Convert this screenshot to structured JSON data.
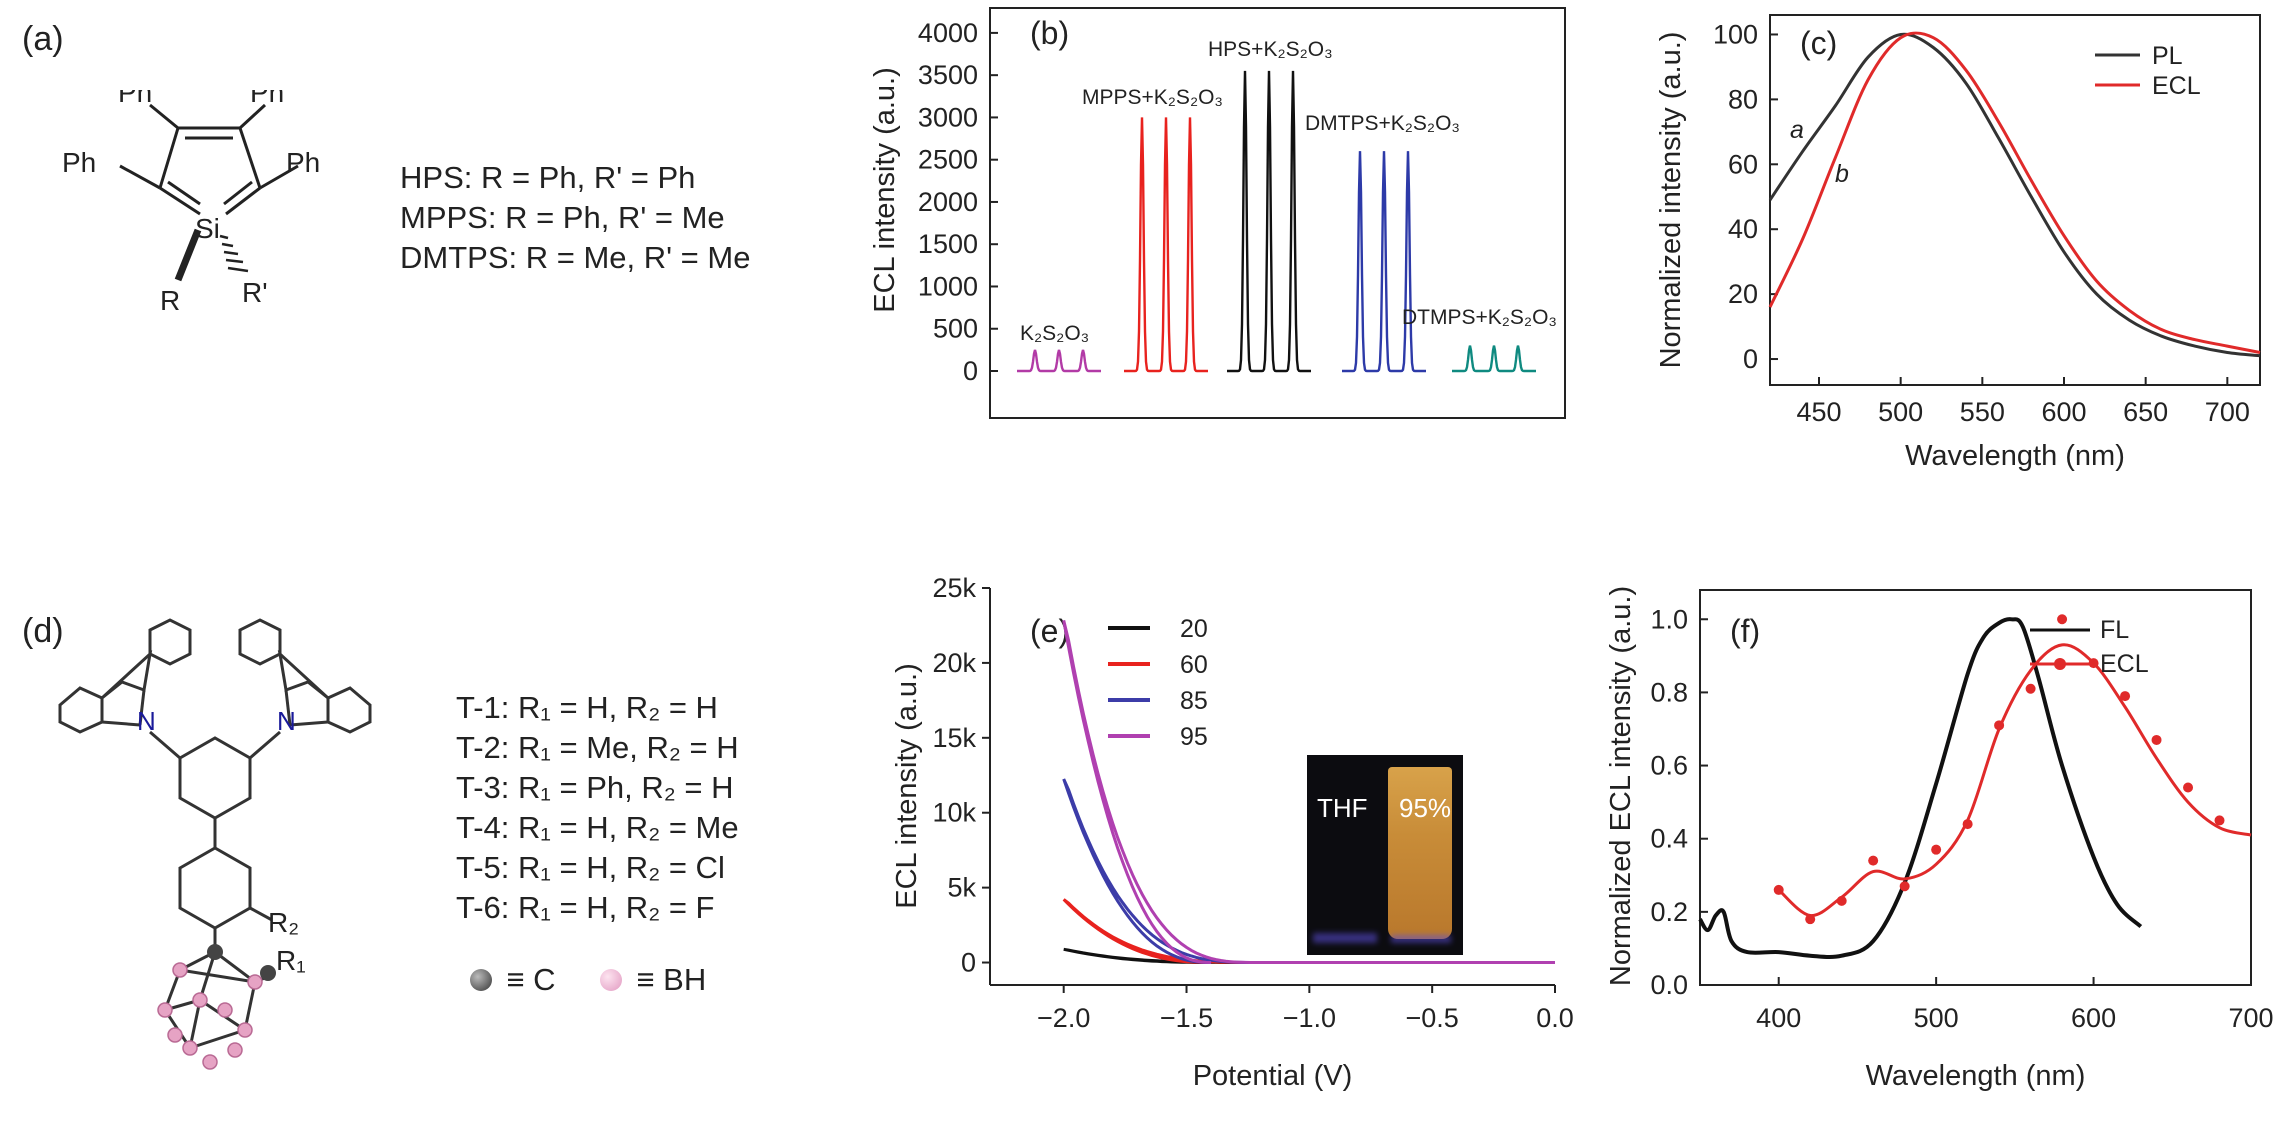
{
  "panels": {
    "a": {
      "label": "(a)",
      "legend": [
        "HPS: R = Ph, R' = Ph",
        "MPPS: R = Ph, R' = Me",
        "DMTPS: R = Me, R' = Me"
      ],
      "structure": {
        "ph": "Ph",
        "si": "Si",
        "r": "R",
        "rp": "R'"
      }
    },
    "d": {
      "label": "(d)",
      "legend": [
        "T-1: R₁ = H, R₂ = H",
        "T-2: R₁ = Me, R₂ = H",
        "T-3: R₁ = Ph, R₂ = H",
        "T-4: R₁ = H, R₂ = Me",
        "T-5: R₁ = H, R₂ = Cl",
        "T-6: R₁ = H, R₂ = F"
      ],
      "key_c": "≡ C",
      "key_bh": "≡ BH",
      "structure": {
        "n": "N",
        "r1": "R₁",
        "r2": "R₂"
      }
    }
  },
  "chart_data": [
    {
      "panel": "(b)",
      "type": "line",
      "ylabel": "ECL intensity (a.u.)",
      "xlabel": "",
      "ylim": [
        0,
        4000
      ],
      "yticks": [
        "0",
        "500",
        "1000",
        "1500",
        "2000",
        "2500",
        "3000",
        "3500",
        "4000"
      ],
      "series": [
        {
          "name": "K₂S₂O₃",
          "peak": 250,
          "peaks": 3,
          "color": "#b23aa6"
        },
        {
          "name": "MPPS+K₂S₂O₃",
          "peak": 3000,
          "peaks": 3,
          "color": "#e8221e"
        },
        {
          "name": "HPS+K₂S₂O₃",
          "peak": 3550,
          "peaks": 3,
          "color": "#111111"
        },
        {
          "name": "DMTPS+K₂S₂O₃",
          "peak": 2600,
          "peaks": 3,
          "color": "#2d3aa8"
        },
        {
          "name": "DTMPS+K₂S₂O₃",
          "peak": 300,
          "peaks": 3,
          "color": "#0f8a80"
        }
      ]
    },
    {
      "panel": "(c)",
      "type": "line",
      "xlabel": "Wavelength (nm)",
      "ylabel": "Normalized intensity (a.u.)",
      "xlim": [
        420,
        720
      ],
      "ylim": [
        -8,
        106
      ],
      "xticks": [
        450,
        500,
        550,
        600,
        650,
        700
      ],
      "yticks": [
        0,
        20,
        40,
        60,
        80,
        100
      ],
      "legend_position": "top-right",
      "annotations": [
        "a",
        "b"
      ],
      "series": [
        {
          "name": "PL",
          "color": "#333333",
          "x": [
            420,
            440,
            460,
            480,
            500,
            520,
            540,
            560,
            580,
            600,
            620,
            640,
            660,
            680,
            700,
            720
          ],
          "y": [
            49,
            64,
            78,
            93,
            100,
            96,
            85,
            68,
            50,
            33,
            20,
            12,
            7,
            4,
            2,
            1
          ]
        },
        {
          "name": "ECL",
          "color": "#e02a2a",
          "x": [
            420,
            440,
            460,
            480,
            500,
            520,
            540,
            560,
            580,
            600,
            620,
            640,
            660,
            680,
            700,
            720
          ],
          "y": [
            16,
            37,
            62,
            86,
            99,
            99,
            89,
            73,
            55,
            38,
            24,
            15,
            9,
            6,
            4,
            2
          ]
        }
      ]
    },
    {
      "panel": "(e)",
      "type": "line",
      "xlabel": "Potential (V)",
      "ylabel": "ECL intensity (a.u.)",
      "xlim": [
        -2.3,
        0.0
      ],
      "ylim": [
        -1500,
        25000
      ],
      "xticks": [
        "−2.0",
        "−1.5",
        "−1.0",
        "−0.5",
        "0.0"
      ],
      "xtick_values": [
        -2.0,
        -1.5,
        -1.0,
        -0.5,
        0.0
      ],
      "yticks": [
        "0",
        "5k",
        "10k",
        "15k",
        "20k",
        "25k"
      ],
      "ytick_values": [
        0,
        5000,
        10000,
        15000,
        20000,
        25000
      ],
      "legend_position": "top-left",
      "inset": {
        "left_label": "THF",
        "right_label": "95%"
      },
      "series": [
        {
          "name": "20",
          "color": "#111111",
          "peak": 900
        },
        {
          "name": "60",
          "color": "#e8221e",
          "peak": 4300
        },
        {
          "name": "85",
          "color": "#3c3ca8",
          "peak": 12500
        },
        {
          "name": "95",
          "color": "#b040b0",
          "peak": 23300
        }
      ]
    },
    {
      "panel": "(f)",
      "type": "line",
      "xlabel": "Wavelength (nm)",
      "ylabel": "Normalized ECL intensity (a.u.)",
      "xlim": [
        350,
        700
      ],
      "ylim": [
        0.0,
        1.08
      ],
      "xticks": [
        400,
        500,
        600,
        700
      ],
      "yticks": [
        "0.0",
        "0.2",
        "0.4",
        "0.6",
        "0.8",
        "1.0"
      ],
      "ytick_values": [
        0.0,
        0.2,
        0.4,
        0.6,
        0.8,
        1.0
      ],
      "legend_position": "top-right",
      "series": [
        {
          "name": "FL",
          "color": "#111111",
          "x": [
            350,
            355,
            360,
            365,
            370,
            380,
            400,
            420,
            440,
            460,
            480,
            500,
            520,
            530,
            540,
            548,
            555,
            565,
            580,
            600,
            615,
            630
          ],
          "y": [
            0.18,
            0.15,
            0.19,
            0.2,
            0.12,
            0.09,
            0.09,
            0.08,
            0.08,
            0.12,
            0.28,
            0.55,
            0.85,
            0.95,
            0.99,
            1.0,
            0.98,
            0.84,
            0.6,
            0.35,
            0.22,
            0.16
          ]
        },
        {
          "name": "ECL",
          "color": "#e02a2a",
          "x": [
            400,
            420,
            440,
            460,
            480,
            500,
            520,
            540,
            560,
            580,
            600,
            620,
            640,
            660,
            680,
            700
          ],
          "y": [
            0.26,
            0.19,
            0.24,
            0.31,
            0.29,
            0.33,
            0.45,
            0.7,
            0.86,
            0.93,
            0.88,
            0.76,
            0.62,
            0.5,
            0.43,
            0.41
          ]
        },
        {
          "name": "ECL points",
          "color": "#e02a2a",
          "markers": true,
          "x": [
            400,
            420,
            440,
            460,
            480,
            500,
            520,
            540,
            560,
            580,
            600,
            620,
            640,
            660,
            680
          ],
          "y": [
            0.26,
            0.18,
            0.23,
            0.34,
            0.27,
            0.37,
            0.44,
            0.71,
            0.81,
            1.0,
            0.88,
            0.79,
            0.67,
            0.54,
            0.45
          ]
        }
      ]
    }
  ]
}
